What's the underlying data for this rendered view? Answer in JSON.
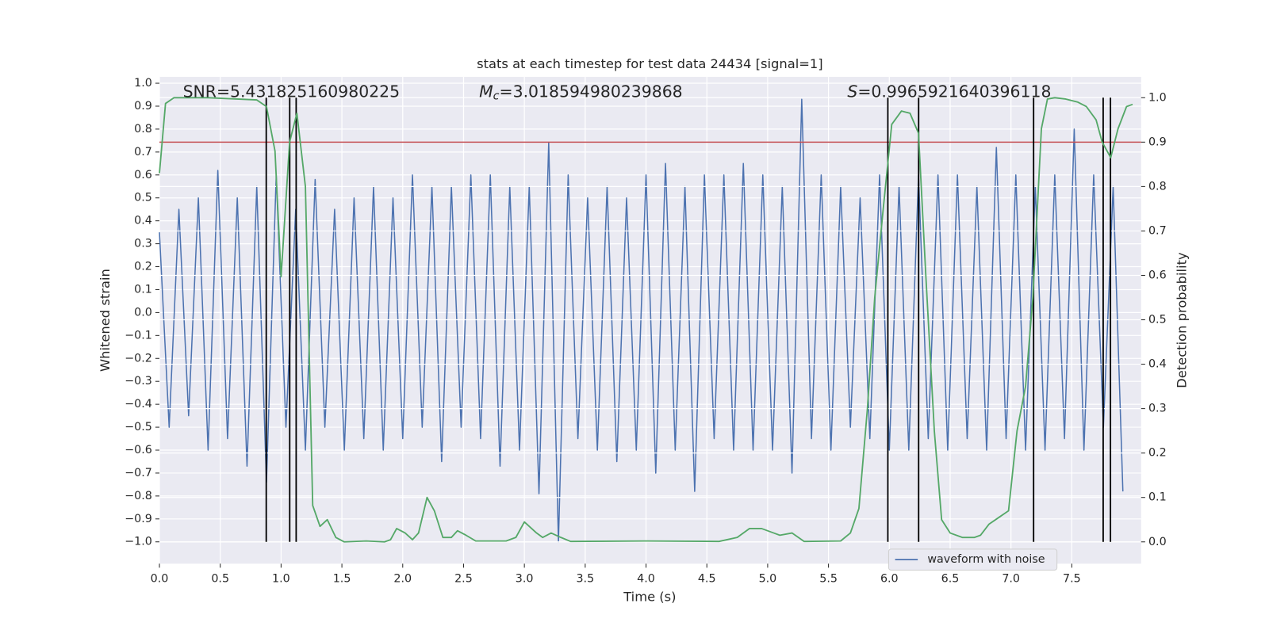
{
  "chart_data": {
    "type": "line",
    "title": "stats at each timestep for test data 24434 [signal=1]",
    "xlabel": "Time (s)",
    "ylabel": "Whitened strain",
    "y2label": "Detection probability",
    "annotations": [
      {
        "text": "SNR=5.431825160980225"
      },
      {
        "symbol": "M",
        "subscript": "c",
        "text": "=3.018594980239868"
      },
      {
        "symbol": "S",
        "text": "=0.9965921640396118"
      }
    ],
    "xlim": [
      0,
      8.07
    ],
    "ylim": [
      -1.095,
      1.028
    ],
    "y2lim": [
      -0.049,
      1.047
    ],
    "xticks": [
      {
        "value": 0,
        "label": "0.0"
      },
      0.5,
      {
        "value": 1,
        "label": "1.0"
      },
      1.5,
      {
        "value": 2,
        "label": "2.0"
      },
      2.5,
      {
        "value": 3,
        "label": "3.0"
      },
      3.5,
      {
        "value": 4,
        "label": "4.0"
      },
      4.5,
      {
        "value": 5,
        "label": "5.0"
      },
      5.5,
      {
        "value": 6,
        "label": "6.0"
      },
      6.5,
      {
        "value": 7,
        "label": "7.0"
      },
      7.5
    ],
    "yticks": [
      {
        "value": -1,
        "label": "−1.0"
      },
      {
        "value": -0.9,
        "label": "−0.9"
      },
      {
        "value": -0.8,
        "label": "−0.8"
      },
      {
        "value": -0.7,
        "label": "−0.7"
      },
      {
        "value": -0.6,
        "label": "−0.6"
      },
      {
        "value": -0.5,
        "label": "−0.5"
      },
      {
        "value": -0.4,
        "label": "−0.4"
      },
      {
        "value": -0.3,
        "label": "−0.3"
      },
      {
        "value": -0.2,
        "label": "−0.2"
      },
      {
        "value": -0.1,
        "label": "−0.1"
      },
      {
        "value": 0,
        "label": "0.0"
      },
      0.1,
      0.2,
      0.3,
      0.4,
      0.5,
      0.6,
      0.7,
      0.8,
      0.9,
      {
        "value": 1,
        "label": "1.0"
      }
    ],
    "y2ticks": [
      {
        "value": 0,
        "label": "0.0"
      },
      0.1,
      0.2,
      0.3,
      0.4,
      0.5,
      0.6,
      0.7,
      0.8,
      0.9,
      {
        "value": 1,
        "label": "1.0"
      }
    ],
    "grid": true,
    "legend": "lower right",
    "series": [
      {
        "name": "waveform with noise",
        "color": "#4c72b0",
        "axis": "y",
        "x": [
          0,
          0.08,
          0.16,
          0.24,
          0.32,
          0.4,
          0.48,
          0.56,
          0.64,
          0.72,
          0.8,
          0.88,
          0.96,
          1.04,
          1.12,
          1.2,
          1.28,
          1.36,
          1.44,
          1.52,
          1.6,
          1.68,
          1.76,
          1.84,
          1.92,
          2,
          2.08,
          2.16,
          2.24,
          2.32,
          2.4,
          2.48,
          2.56,
          2.64,
          2.72,
          2.8,
          2.88,
          2.96,
          3.04,
          3.12,
          3.2,
          3.28,
          3.36,
          3.44,
          3.52,
          3.6,
          3.68,
          3.76,
          3.84,
          3.92,
          4,
          4.08,
          4.16,
          4.24,
          4.32,
          4.4,
          4.48,
          4.56,
          4.64,
          4.72,
          4.8,
          4.88,
          4.96,
          5.04,
          5.12,
          5.2,
          5.28,
          5.36,
          5.44,
          5.52,
          5.6,
          5.68,
          5.76,
          5.84,
          5.92,
          6,
          6.08,
          6.16,
          6.24,
          6.32,
          6.4,
          6.48,
          6.56,
          6.64,
          6.72,
          6.8,
          6.88,
          6.96,
          7.04,
          7.12,
          7.2,
          7.28,
          7.36,
          7.44,
          7.52,
          7.6,
          7.68,
          7.76,
          7.84,
          7.92
        ],
        "values": [
          0.35,
          -0.5,
          0.45,
          -0.45,
          0.5,
          -0.6,
          0.62,
          -0.55,
          0.5,
          -0.67,
          0.55,
          -0.74,
          0.6,
          -0.5,
          0.45,
          -0.6,
          0.58,
          -0.5,
          0.45,
          -0.6,
          0.5,
          -0.55,
          0.55,
          -0.6,
          0.5,
          -0.55,
          0.6,
          -0.5,
          0.55,
          -0.65,
          0.55,
          -0.5,
          0.6,
          -0.55,
          0.6,
          -0.67,
          0.55,
          -0.6,
          0.55,
          -0.79,
          0.74,
          -1.0,
          0.6,
          -0.55,
          0.5,
          -0.6,
          0.55,
          -0.65,
          0.5,
          -0.6,
          0.6,
          -0.7,
          0.65,
          -0.6,
          0.55,
          -0.78,
          0.6,
          -0.55,
          0.6,
          -0.6,
          0.65,
          -0.6,
          0.6,
          -0.6,
          0.55,
          -0.7,
          0.93,
          -0.55,
          0.6,
          -0.6,
          0.55,
          -0.5,
          0.5,
          -0.55,
          0.6,
          -0.6,
          0.55,
          -0.6,
          0.6,
          -0.55,
          0.6,
          -0.6,
          0.6,
          -0.55,
          0.55,
          -0.6,
          0.72,
          -0.55,
          0.6,
          -0.6,
          0.55,
          -0.6,
          0.6,
          -0.55,
          0.8,
          -0.6,
          0.6,
          -0.5,
          0.55,
          -0.78
        ]
      },
      {
        "color": "#55a868",
        "axis": "y2",
        "x": [
          0,
          0.05,
          0.12,
          0.4,
          0.8,
          0.88,
          0.95,
          1.0,
          1.07,
          1.13,
          1.2,
          1.26,
          1.32,
          1.38,
          1.45,
          1.52,
          1.7,
          1.85,
          1.9,
          1.95,
          2.02,
          2.08,
          2.13,
          2.2,
          2.26,
          2.33,
          2.4,
          2.45,
          2.52,
          2.6,
          2.7,
          2.85,
          2.93,
          3.0,
          3.1,
          3.15,
          3.22,
          3.3,
          3.38,
          4.0,
          4.6,
          4.75,
          4.85,
          4.95,
          5.05,
          5.1,
          5.2,
          5.3,
          5.6,
          5.68,
          5.75,
          5.82,
          5.88,
          5.95,
          6.02,
          6.1,
          6.17,
          6.24,
          6.3,
          6.37,
          6.43,
          6.5,
          6.6,
          6.7,
          6.75,
          6.82,
          6.9,
          6.98,
          7.05,
          7.12,
          7.18,
          7.25,
          7.3,
          7.36,
          7.45,
          7.55,
          7.62,
          7.7,
          7.75,
          7.82,
          7.88,
          7.95,
          8.0
        ],
        "values": [
          0.83,
          0.987,
          1.0,
          1.0,
          0.995,
          0.98,
          0.88,
          0.597,
          0.9,
          0.965,
          0.8,
          0.082,
          0.035,
          0.05,
          0.01,
          0.0,
          0.002,
          0.0,
          0.005,
          0.03,
          0.02,
          0.005,
          0.02,
          0.1,
          0.07,
          0.01,
          0.01,
          0.025,
          0.015,
          0.002,
          0.002,
          0.002,
          0.01,
          0.045,
          0.02,
          0.01,
          0.02,
          0.01,
          0.001,
          0.002,
          0.001,
          0.01,
          0.03,
          0.03,
          0.02,
          0.015,
          0.02,
          0.001,
          0.002,
          0.02,
          0.075,
          0.3,
          0.55,
          0.75,
          0.94,
          0.97,
          0.965,
          0.92,
          0.6,
          0.25,
          0.05,
          0.02,
          0.01,
          0.01,
          0.015,
          0.04,
          0.055,
          0.07,
          0.25,
          0.35,
          0.55,
          0.93,
          0.997,
          1.0,
          0.997,
          0.99,
          0.98,
          0.95,
          0.9,
          0.865,
          0.93,
          0.98,
          0.985
        ]
      }
    ],
    "hlines": [
      {
        "value": 0.9,
        "axis": "y2",
        "color": "#c44e52"
      }
    ],
    "vlines": {
      "values": [
        0.878,
        1.071,
        1.124,
        5.988,
        6.241,
        7.186,
        7.758,
        7.818
      ],
      "color": "#000000"
    }
  }
}
